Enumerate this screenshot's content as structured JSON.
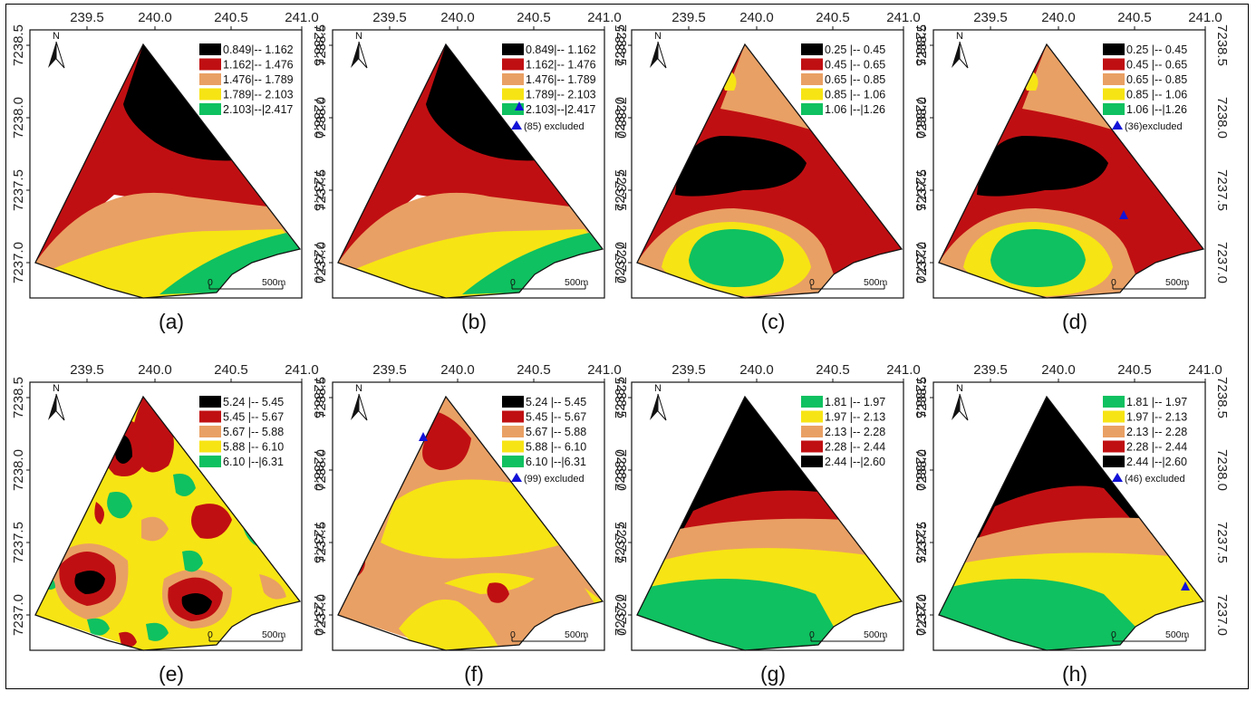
{
  "colors": {
    "black": "#000000",
    "red": "#c00f12",
    "orange": "#e9a064",
    "yellow": "#f7e414",
    "green": "#0fc160",
    "marker": "#1212d8"
  },
  "axes": {
    "x_ticks": [
      "239.5",
      "240.0",
      "240.5",
      "241.0"
    ],
    "y_ticks": [
      "7238.5",
      "7238.0",
      "7237.5",
      "7237.0"
    ]
  },
  "north_label": "N",
  "scale_bar": {
    "start": "0",
    "end": "500m"
  },
  "panels": [
    {
      "id": "a",
      "caption": "(a)",
      "legend": [
        {
          "label": "0.849|-- 1.162",
          "color": "black"
        },
        {
          "label": "1.162|-- 1.476",
          "color": "red"
        },
        {
          "label": "1.476|-- 1.789",
          "color": "orange"
        },
        {
          "label": "1.789|-- 2.103",
          "color": "yellow"
        },
        {
          "label": "2.103|--|2.417",
          "color": "green"
        }
      ],
      "note": ""
    },
    {
      "id": "b",
      "caption": "(b)",
      "legend": [
        {
          "label": "0.849|-- 1.162",
          "color": "black"
        },
        {
          "label": "1.162|-- 1.476",
          "color": "red"
        },
        {
          "label": "1.476|-- 1.789",
          "color": "orange"
        },
        {
          "label": "1.789|-- 2.103",
          "color": "yellow"
        },
        {
          "label": "2.103|--|2.417",
          "color": "green"
        }
      ],
      "note": "(85) excluded"
    },
    {
      "id": "c",
      "caption": "(c)",
      "legend": [
        {
          "label": "0.25 |-- 0.45",
          "color": "black"
        },
        {
          "label": "0.45 |-- 0.65",
          "color": "red"
        },
        {
          "label": "0.65 |-- 0.85",
          "color": "orange"
        },
        {
          "label": "0.85 |-- 1.06",
          "color": "yellow"
        },
        {
          "label": "1.06 |--|1.26",
          "color": "green"
        }
      ],
      "note": ""
    },
    {
      "id": "d",
      "caption": "(d)",
      "legend": [
        {
          "label": "0.25 |-- 0.45",
          "color": "black"
        },
        {
          "label": "0.45 |-- 0.65",
          "color": "red"
        },
        {
          "label": "0.65 |-- 0.85",
          "color": "orange"
        },
        {
          "label": "0.85 |-- 1.06",
          "color": "yellow"
        },
        {
          "label": "1.06 |--|1.26",
          "color": "green"
        }
      ],
      "note": "(36)excluded"
    },
    {
      "id": "e",
      "caption": "(e)",
      "legend": [
        {
          "label": "5.24 |-- 5.45",
          "color": "black"
        },
        {
          "label": "5.45 |-- 5.67",
          "color": "red"
        },
        {
          "label": "5.67 |-- 5.88",
          "color": "orange"
        },
        {
          "label": "5.88 |-- 6.10",
          "color": "yellow"
        },
        {
          "label": "6.10 |--|6.31",
          "color": "green"
        }
      ],
      "note": ""
    },
    {
      "id": "f",
      "caption": "(f)",
      "legend": [
        {
          "label": "5.24 |-- 5.45",
          "color": "black"
        },
        {
          "label": "5.45 |-- 5.67",
          "color": "red"
        },
        {
          "label": "5.67 |-- 5.88",
          "color": "orange"
        },
        {
          "label": "5.88 |-- 6.10",
          "color": "yellow"
        },
        {
          "label": "6.10 |--|6.31",
          "color": "green"
        }
      ],
      "note": "(99) excluded"
    },
    {
      "id": "g",
      "caption": "(g)",
      "legend": [
        {
          "label": "1.81 |-- 1.97",
          "color": "green"
        },
        {
          "label": "1.97 |-- 2.13",
          "color": "yellow"
        },
        {
          "label": "2.13 |-- 2.28",
          "color": "orange"
        },
        {
          "label": "2.28 |-- 2.44",
          "color": "red"
        },
        {
          "label": "2.44 |--|2.60",
          "color": "black"
        }
      ],
      "note": ""
    },
    {
      "id": "h",
      "caption": "(h)",
      "legend": [
        {
          "label": "1.81 |-- 1.97",
          "color": "green"
        },
        {
          "label": "1.97 |-- 2.13",
          "color": "yellow"
        },
        {
          "label": "2.13 |-- 2.28",
          "color": "orange"
        },
        {
          "label": "2.28 |-- 2.44",
          "color": "red"
        },
        {
          "label": "2.44 |--|2.60",
          "color": "black"
        }
      ],
      "note": "(46) excluded"
    }
  ]
}
